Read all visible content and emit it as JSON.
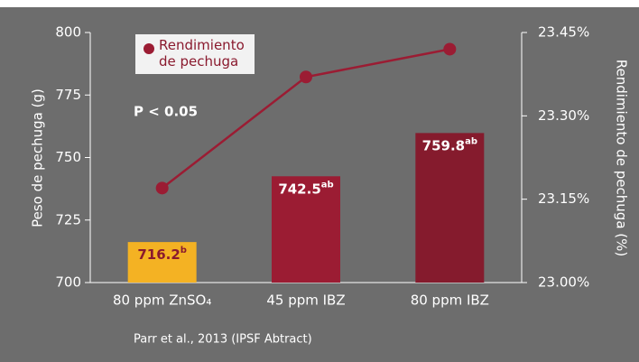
{
  "chart_data": {
    "type": "bar_line",
    "categories": [
      "80 ppm ZnSO₄",
      "45 ppm IBZ",
      "80 ppm IBZ"
    ],
    "series": [
      {
        "name": "Peso de pechuga",
        "type": "bar",
        "colors": [
          "#f4b223",
          "#9b1c33",
          "#851b2d"
        ],
        "values": [
          716.2,
          742.5,
          759.8
        ],
        "value_labels": [
          "716.2",
          "742.5",
          "759.8"
        ],
        "significance": [
          "b",
          "ab",
          "ab"
        ],
        "value_label_colors": [
          "#8a1a2e",
          "#ffffff",
          "#ffffff"
        ]
      },
      {
        "name": "Rendimiento de pechuga",
        "type": "line",
        "axis": "y2",
        "color": "#9b1c33",
        "values": [
          23.17,
          23.37,
          23.42
        ]
      }
    ],
    "ylabel": "Peso de pechuga (g)",
    "y2label": "Rendimiento de pechuga (%)",
    "ylim": [
      700,
      800
    ],
    "yticks": [
      700,
      725,
      750,
      775,
      800
    ],
    "y2lim": [
      23.0,
      23.45
    ],
    "y2ticks": [
      {
        "value": 23.0,
        "label": "23.00%"
      },
      {
        "value": 23.15,
        "label": "23.15%"
      },
      {
        "value": 23.3,
        "label": "23.30%"
      },
      {
        "value": 23.45,
        "label": "23.45%"
      }
    ],
    "annotation": "P < 0.05",
    "source": "Parr et al., 2013 (IPSF Abtract)",
    "legend": "top-left"
  }
}
